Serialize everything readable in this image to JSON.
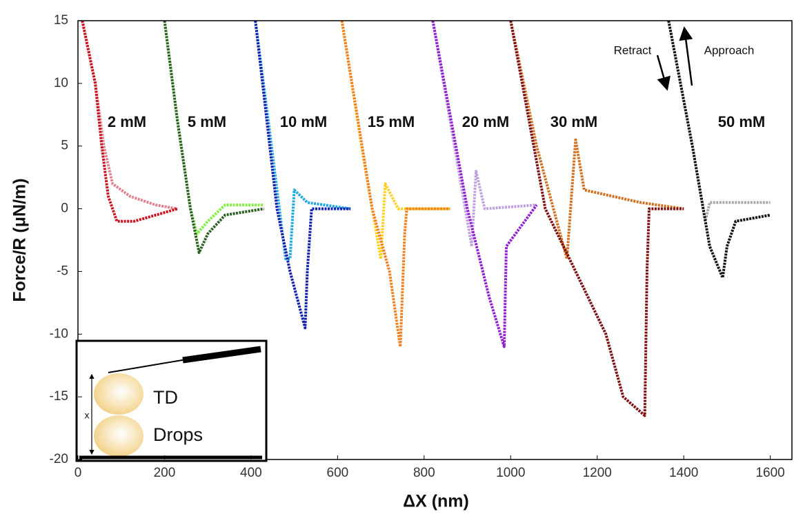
{
  "chart_data": {
    "type": "line",
    "xlabel": "ΔX (nm)",
    "ylabel": "Force/R (μN/m)",
    "xlim": [
      0,
      1650
    ],
    "ylim": [
      -20,
      15
    ],
    "xticks": [
      0,
      200,
      400,
      600,
      800,
      1000,
      1200,
      1400,
      1600
    ],
    "yticks": [
      -20,
      -15,
      -10,
      -5,
      0,
      5,
      10,
      15
    ],
    "annotations": [
      "2 mM",
      "5 mM",
      "10 mM",
      "15 mM",
      "20 mM",
      "30 mM",
      "50 mM",
      "Retract",
      "Approach"
    ],
    "series": [
      {
        "color": "#e0808e",
        "x": [
          10,
          40,
          60,
          80,
          120,
          180,
          230
        ],
        "values": [
          15,
          10,
          5,
          2,
          1,
          0.3,
          0
        ]
      },
      {
        "color": "#cc1020",
        "x": [
          10,
          40,
          55,
          70,
          90,
          130,
          180,
          230
        ],
        "values": [
          15,
          10,
          5,
          1,
          -1,
          -1,
          -0.5,
          0
        ]
      },
      {
        "color": "#80f040",
        "x": [
          200,
          230,
          260,
          275,
          300,
          340,
          430
        ],
        "values": [
          15,
          7,
          0,
          -2,
          -1,
          0.3,
          0.3
        ]
      },
      {
        "color": "#2a6020",
        "x": [
          200,
          230,
          260,
          280,
          300,
          340,
          430
        ],
        "values": [
          15,
          7,
          0,
          -3.5,
          -2,
          -0.5,
          0
        ]
      },
      {
        "color": "#20a8e0",
        "x": [
          410,
          440,
          480,
          490,
          500,
          530,
          630
        ],
        "values": [
          15,
          7,
          -4,
          -4,
          1.5,
          0.5,
          0
        ]
      },
      {
        "color": "#1020b0",
        "x": [
          410,
          460,
          490,
          525,
          530,
          540,
          630
        ],
        "values": [
          15,
          0,
          -5,
          -9.5,
          -5,
          0,
          0
        ]
      },
      {
        "color": "#ffd020",
        "x": [
          610,
          660,
          700,
          710,
          740,
          860
        ],
        "values": [
          15,
          4,
          -4,
          2,
          0,
          0
        ]
      },
      {
        "color": "#f08020",
        "x": [
          610,
          680,
          720,
          745,
          755,
          760,
          860
        ],
        "values": [
          15,
          0,
          -5,
          -11,
          -2,
          0,
          0
        ]
      },
      {
        "color": "#c0a0e0",
        "x": [
          820,
          870,
          910,
          920,
          940,
          1060
        ],
        "values": [
          15,
          5,
          -3,
          3,
          0,
          0.3
        ]
      },
      {
        "color": "#9020d0",
        "x": [
          820,
          900,
          950,
          985,
          990,
          1060
        ],
        "values": [
          15,
          0,
          -7,
          -11,
          -3,
          0.3
        ]
      },
      {
        "color": "#d07020",
        "x": [
          1000,
          1060,
          1130,
          1150,
          1170,
          1300,
          1400
        ],
        "values": [
          15,
          5,
          -4,
          5.5,
          1.5,
          0.5,
          0
        ]
      },
      {
        "color": "#801010",
        "x": [
          1000,
          1080,
          1150,
          1220,
          1260,
          1310,
          1315,
          1320,
          1400
        ],
        "values": [
          15,
          0,
          -5,
          -10,
          -15,
          -16.5,
          -5,
          0,
          0
        ]
      },
      {
        "color": "#a8a8a8",
        "x": [
          1365,
          1420,
          1450,
          1460,
          1500,
          1600
        ],
        "values": [
          15,
          5,
          -1,
          0.5,
          0.5,
          0.5
        ]
      },
      {
        "color": "#101010",
        "x": [
          1365,
          1420,
          1460,
          1490,
          1500,
          1520,
          1600
        ],
        "values": [
          15,
          5,
          -3,
          -5.5,
          -3,
          -1,
          -0.5
        ]
      }
    ]
  },
  "inset": {
    "distance": "x",
    "top_label": "TD",
    "bottom_label": "Drops"
  }
}
